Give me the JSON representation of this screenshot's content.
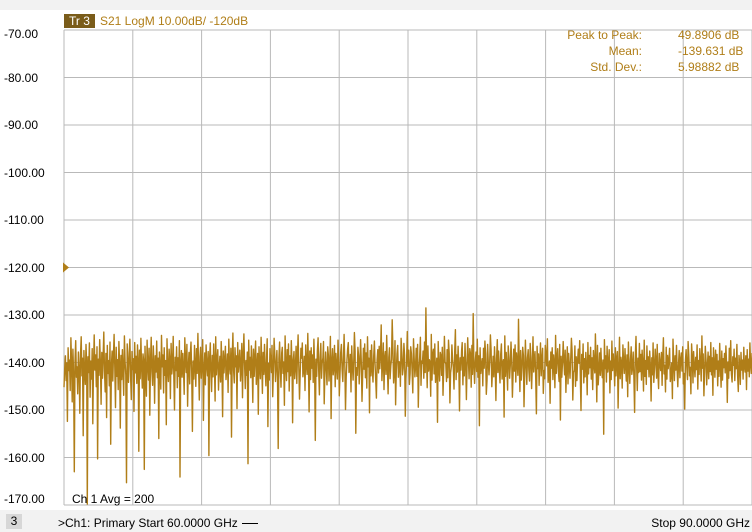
{
  "trace": {
    "tag": "Tr 3",
    "description": "S21 LogM 10.00dB/  -120dB",
    "color": "#b07e18"
  },
  "y_axis": {
    "ticks": [
      "-70.00",
      "-80.00",
      "-90.00",
      "-100.00",
      "-110.00",
      "-120.00",
      "-130.00",
      "-140.00",
      "-150.00",
      "-160.00",
      "-170.00"
    ],
    "reference_level": -120
  },
  "stats": {
    "peak_to_peak_label": "Peak to Peak:",
    "peak_to_peak_value": "49.8906 dB",
    "mean_label": "Mean:",
    "mean_value": "-139.631 dB",
    "std_dev_label": "Std. Dev.:",
    "std_dev_value": "5.98882 dB"
  },
  "averaging": {
    "label": "Ch 1 Avg =  200"
  },
  "footer": {
    "channel_number": "3",
    "channel_info": ">Ch1: Primary  Start  60.0000 GHz",
    "stop_label": "Stop  90.0000 GHz"
  },
  "chart_data": {
    "type": "line",
    "title": "",
    "xlabel": "",
    "ylabel": "",
    "x_start_ghz": 60,
    "x_stop_ghz": 90,
    "ylim": [
      -170,
      -70
    ],
    "grid": true,
    "series": [
      {
        "color": "#b07e18",
        "summary": {
          "peak_to_peak_db": 49.8906,
          "mean_db": -139.631,
          "std_dev_db": 5.98882
        },
        "values": [
          -145.2,
          -141.3,
          -138.6,
          -143.8,
          -140.1,
          -152.4,
          -136.9,
          -141.7,
          -139.5,
          -145.9,
          -134.8,
          -140.6,
          -148.3,
          -137.2,
          -142.4,
          -163.0,
          -139.8,
          -135.4,
          -143.1,
          -140.9,
          -146.6,
          -137.8,
          -141.2,
          -150.7,
          -138.3,
          -134.6,
          -142.8,
          -139.1,
          -155.4,
          -137.5,
          -141.9,
          -144.6,
          -136.2,
          -140.4,
          -169.8,
          -138.8,
          -142.1,
          -135.9,
          -147.3,
          -139.7,
          -143.5,
          -137.1,
          -152.9,
          -140.8,
          -134.2,
          -141.6,
          -138.4,
          -145.1,
          -136.7,
          -160.3,
          -139.3,
          -142.7,
          -135.2,
          -140.2,
          -148.8,
          -137.9,
          -143.3,
          -139.0,
          -133.6,
          -141.8,
          -146.2,
          -138.1,
          -151.6,
          -136.4,
          -142.3,
          -139.6,
          -144.9,
          -135.7,
          -157.2,
          -140.7,
          -137.6,
          -143.9,
          -138.9,
          -134.1,
          -141.1,
          -149.5,
          -136.8,
          -142.9,
          -139.4,
          -145.7,
          -135.6,
          -140.3,
          -153.8,
          -138.5,
          -143.6,
          -137.3,
          -141.4,
          -146.9,
          -134.4,
          -139.9,
          -142.6,
          -165.3,
          -136.1,
          -140.5,
          -144.2,
          -138.0,
          -135.1,
          -143.0,
          -147.8,
          -137.7,
          -141.5,
          -139.2,
          -150.3,
          -135.8,
          -142.2,
          -138.7,
          -144.4,
          -136.3,
          -140.0,
          -158.7,
          -137.4,
          -143.4,
          -134.9,
          -141.0,
          -145.4,
          -138.2,
          -139.5,
          -162.5,
          -136.6,
          -142.5,
          -147.1,
          -135.3,
          -140.7,
          -143.7,
          -137.0,
          -151.1,
          -139.8,
          -134.7,
          -141.9,
          -144.8,
          -136.5,
          -140.1,
          -148.6,
          -138.6,
          -142.0,
          -135.5,
          -143.2,
          -139.1,
          -156.0,
          -137.8,
          -141.3,
          -145.6,
          -134.3,
          -140.9,
          -138.4,
          -146.4,
          -136.9,
          -142.7,
          -139.6,
          -153.1,
          -135.0,
          -141.2,
          -144.0,
          -137.2,
          -139.3,
          -147.6,
          -136.0,
          -142.4,
          -140.5,
          -134.5,
          -143.8,
          -150.0,
          -138.9,
          -141.7,
          -136.7,
          -145.3,
          -139.0,
          -142.9,
          -135.4,
          -164.1,
          -140.2,
          -137.5,
          -143.1,
          -138.1,
          -141.6,
          -146.7,
          -134.8,
          -139.4,
          -142.1,
          -136.2,
          -149.2,
          -140.8,
          -137.9,
          -144.5,
          -138.3,
          -135.7,
          -141.8,
          -154.5,
          -139.7,
          -143.5,
          -136.4,
          -140.4,
          -145.0,
          -137.1,
          -142.3,
          -133.9,
          -141.0,
          -147.9,
          -138.8,
          -136.8,
          -143.3,
          -139.9,
          -135.2,
          -152.2,
          -141.4,
          -138.0,
          -144.7,
          -136.3,
          -140.6,
          -142.8,
          -137.7,
          -159.6,
          -139.2,
          -135.9,
          -141.5,
          -146.1,
          -138.5,
          -143.0,
          -136.1,
          -140.3,
          -148.1,
          -134.6,
          -142.6,
          -139.5,
          -137.3,
          -145.8,
          -141.1,
          -138.7,
          -144.1,
          -135.6,
          -140.0,
          -151.4,
          -137.6,
          -142.2,
          -139.3,
          -136.6,
          -143.6,
          -141.3,
          -138.2,
          -146.3,
          -135.1,
          -140.7,
          -142.4,
          -137.0,
          -155.7,
          -139.1,
          -133.8,
          -141.7,
          -144.3,
          -136.9,
          -140.9,
          -138.6,
          -149.7,
          -135.8,
          -142.0,
          -139.8,
          -137.4,
          -143.9,
          -141.2,
          -136.0,
          -147.4,
          -138.4,
          -134.0,
          -140.5,
          -145.5,
          -139.6,
          -142.7,
          -137.8,
          -161.3,
          -135.3,
          -141.6,
          -138.9,
          -143.2,
          -136.5,
          -140.1,
          -148.4,
          -137.2,
          -142.9,
          -139.0,
          -135.5,
          -144.6,
          -141.0,
          -138.1,
          -150.9,
          -136.7,
          -140.8,
          -143.4,
          -134.7,
          -139.4,
          -146.5,
          -137.9,
          -142.5,
          -136.2,
          -141.4,
          -144.9,
          -138.8,
          -135.0,
          -153.5,
          -140.2,
          -143.7,
          -137.1,
          -139.7,
          -142.1,
          -136.4,
          -147.2,
          -141.8,
          -134.9,
          -138.3,
          -144.0,
          -140.6,
          -137.5,
          -143.1,
          -158.1,
          -139.2,
          -135.7,
          -141.5,
          -145.2,
          -138.0,
          -136.8,
          -142.3,
          -139.9,
          -149.0,
          -134.4,
          -140.3,
          -143.8,
          -137.3,
          -141.9,
          -136.1,
          -146.0,
          -138.6,
          -142.8,
          -135.4,
          -140.0,
          -152.7,
          -139.5,
          -137.7,
          -143.4,
          -141.1,
          -136.6,
          -144.4,
          -138.2,
          -134.2,
          -140.9,
          -147.7,
          -142.2,
          -137.0,
          -139.1,
          -135.9,
          -143.0,
          -141.6,
          -138.7,
          -145.9,
          -136.3,
          -140.4,
          -142.5,
          -133.9,
          -139.8,
          -150.4,
          -137.6,
          -143.6,
          -136.9,
          -141.2,
          -138.4,
          -144.2,
          -135.1,
          -140.7,
          -156.4,
          -139.3,
          -142.9,
          -137.4,
          -134.8,
          -141.7,
          -146.8,
          -138.9,
          -136.0,
          -143.3,
          -140.1,
          -139.0,
          -135.6,
          -148.7,
          -142.0,
          -137.8,
          -141.3,
          -144.7,
          -136.7,
          -138.5,
          -143.9,
          -140.5,
          -134.5,
          -151.8,
          -139.6,
          -137.1,
          -142.6,
          -141.0,
          -136.4,
          -145.1,
          -138.1,
          -140.8,
          -143.5,
          -135.3,
          -139.2,
          -147.0,
          -142.4,
          -137.9,
          -136.2,
          -141.5,
          -144.0,
          -138.8,
          -134.1,
          -140.2,
          -149.9,
          -143.1,
          -139.7,
          -137.2,
          -135.8,
          -142.1,
          -141.8,
          -138.3,
          -146.2,
          -136.5,
          -140.6,
          -143.7,
          -139.4,
          -133.7,
          -137.6,
          -154.9,
          -141.1,
          -142.7,
          -136.8,
          -138.6,
          -144.5,
          -140.3,
          -135.2,
          -139.9,
          -148.2,
          -142.3,
          -137.0,
          -141.4,
          -136.1,
          -143.2,
          -138.0,
          -145.4,
          -134.6,
          -140.9,
          -139.1,
          -150.6,
          -137.5,
          -142.8,
          -136.3,
          -141.6,
          -144.1,
          -138.7,
          -135.5,
          -140.0,
          -143.6,
          -147.5,
          -139.5,
          -137.3,
          -142.2,
          -136.6,
          -141.3,
          -138.4,
          -132.1,
          -143.8,
          -140.4,
          -135.9,
          -145.7,
          -139.0,
          -137.7,
          -142.5,
          -134.3,
          -141.0,
          -146.6,
          -138.9,
          -136.9,
          -143.4,
          -140.7,
          -139.3,
          -131.0,
          -137.1,
          -144.3,
          -142.0,
          -135.4,
          -148.9,
          -141.7,
          -138.2,
          -136.4,
          -143.1,
          -139.8,
          -140.1,
          -145.0,
          -134.9,
          -137.8,
          -142.6,
          -141.2,
          -136.0,
          -138.5,
          -151.3,
          -143.5,
          -139.6,
          -133.5,
          -140.8,
          -137.4,
          -144.6,
          -142.3,
          -136.7,
          -138.1,
          -141.9,
          -146.4,
          -135.0,
          -139.2,
          -143.0,
          -140.5,
          -137.0,
          -142.9,
          -136.2,
          -149.4,
          -141.4,
          -138.8,
          -134.7,
          -144.8,
          -139.7,
          -140.2,
          -137.6,
          -143.3,
          -135.7,
          -142.1,
          -128.5,
          -138.6,
          -145.3,
          -136.5,
          -141.8,
          -139.4,
          -140.0,
          -147.1,
          -134.1,
          -143.7,
          -138.3,
          -137.2,
          -142.4,
          -136.1,
          -144.2,
          -141.1,
          -139.1,
          -152.6,
          -135.6,
          -140.6,
          -143.9,
          -137.9,
          -138.7,
          -142.7,
          -136.8,
          -146.9,
          -141.5,
          -134.5,
          -139.9,
          -140.3,
          -144.0,
          -137.3,
          -143.2,
          -135.3,
          -138.0,
          -148.5,
          -142.2,
          -140.9,
          -136.3,
          -139.5,
          -141.0,
          -145.6,
          -137.7,
          -133.1,
          -143.6,
          -138.4,
          -142.0,
          -136.6,
          -140.4,
          -150.2,
          -139.0,
          -141.6,
          -137.5,
          -135.8,
          -144.7,
          -138.9,
          -142.8,
          -136.0,
          -140.1,
          -147.8,
          -141.3,
          -134.8,
          -139.3,
          -143.4,
          -137.1,
          -138.2,
          -145.2,
          -136.4,
          -142.5,
          -129.7,
          -140.7,
          -144.4,
          -139.7,
          -137.8,
          -141.9,
          -135.1,
          -143.1,
          -138.6,
          -153.3,
          -136.9,
          -142.3,
          -140.5,
          -139.2,
          -144.9,
          -137.0,
          -141.2,
          -135.5,
          -138.1,
          -146.7,
          -143.8,
          -136.2,
          -140.0,
          -142.6,
          -139.8,
          -134.2,
          -137.4,
          -145.1,
          -141.7,
          -138.7,
          -143.0,
          -136.7,
          -140.8,
          -148.0,
          -139.1,
          -135.2,
          -142.1,
          -137.6,
          -141.4,
          -144.3,
          -138.3,
          -136.1,
          -143.5,
          -140.2,
          -139.4,
          -151.5,
          -134.4,
          -142.9,
          -137.9,
          -141.1,
          -145.8,
          -136.5,
          -138.8,
          -143.3,
          -140.6,
          -135.7,
          -139.6,
          -147.3,
          -142.4,
          -137.2,
          -141.8,
          -136.3,
          -144.1,
          -138.0,
          -140.3,
          -142.7,
          -130.9,
          -139.9,
          -146.1,
          -137.5,
          -143.7,
          -141.0,
          -136.8,
          -138.5,
          -149.3,
          -142.2,
          -135.3,
          -140.4,
          -144.6,
          -139.0,
          -137.3,
          -141.5,
          -143.9,
          -136.0,
          -138.9,
          -145.5,
          -140.9,
          -134.6,
          -142.0,
          -139.5,
          -137.7,
          -143.2,
          -150.8,
          -136.6,
          -141.3,
          -138.2,
          -144.8,
          -140.1,
          -135.9,
          -142.8,
          -139.3,
          -137.0,
          -146.5,
          -141.7,
          -143.4,
          -136.4,
          -138.6,
          -140.7,
          -135.0,
          -144.2,
          -142.5,
          -139.7,
          -148.6,
          -137.8,
          -141.2,
          -136.9,
          -143.6,
          -138.4,
          -140.5,
          -145.3,
          -134.3,
          -142.3,
          -139.1,
          -137.1,
          -141.9,
          -144.0,
          -136.2,
          -152.1,
          -138.7,
          -143.1,
          -140.0,
          -135.6,
          -139.8,
          -142.6,
          -137.4,
          -146.3,
          -141.0,
          -136.7,
          -144.5,
          -138.1,
          -140.8,
          -143.3,
          -139.4,
          -134.9,
          -137.6,
          -147.9,
          -142.1,
          -141.6,
          -136.5,
          -145.0,
          -138.8,
          -143.8,
          -139.6,
          -137.2,
          -140.2,
          -135.4,
          -142.9,
          -150.1,
          -138.3,
          -141.4,
          -136.1,
          -144.3,
          -139.2,
          -143.0,
          -137.9,
          -140.6,
          -146.8,
          -135.8,
          -142.4,
          -138.5,
          -141.1,
          -136.8,
          -143.5,
          -139.0,
          -145.7,
          -137.5,
          -140.4,
          -142.2,
          -134.0,
          -139.9,
          -148.3,
          -136.4,
          -144.7,
          -141.8,
          -138.0,
          -142.7,
          -137.0,
          -140.9,
          -143.2,
          -139.5,
          -155.1,
          -135.2,
          -141.3,
          -138.6,
          -144.1,
          -136.6,
          -142.0,
          -140.3,
          -137.3,
          -146.4,
          -139.7,
          -143.6,
          -135.5,
          -141.7,
          -138.2,
          -140.1,
          -144.9,
          -136.9,
          -142.8,
          -139.3,
          -137.7,
          -149.6,
          -141.5,
          -134.7,
          -143.4,
          -138.9,
          -140.0,
          -145.4,
          -136.3,
          -139.8,
          -142.3,
          -137.1,
          -141.0,
          -143.9,
          -138.4,
          -147.2,
          -135.7,
          -140.7,
          -144.4,
          -139.4,
          -136.7,
          -142.5,
          -141.2,
          -137.8,
          -143.1,
          -150.5,
          -138.7,
          -134.5,
          -140.5,
          -145.9,
          -139.1,
          -142.1,
          -136.0,
          -141.9,
          -138.3,
          -143.7,
          -137.4,
          -140.2,
          -146.0,
          -135.3,
          -142.9,
          -139.6,
          -144.6,
          -136.5,
          -141.4,
          -138.8,
          -143.0,
          -137.6,
          -140.8,
          -148.1,
          -139.0,
          -142.6,
          -135.9,
          -144.2,
          -141.1,
          -137.2,
          -139.9,
          -143.3,
          -136.2,
          -142.2,
          -145.5,
          -138.1,
          -140.3,
          -141.7,
          -137.9,
          -144.8,
          -139.2,
          -134.8,
          -142.4,
          -140.6,
          -146.2,
          -136.8,
          -143.5,
          -138.5,
          -141.3,
          -139.5,
          -137.0,
          -144.0,
          -142.7,
          -140.1,
          -147.6,
          -135.1,
          -139.7,
          -143.8,
          -138.6,
          -141.6,
          -136.4,
          -142.0,
          -145.1,
          -140.4,
          -137.5,
          -143.2,
          -139.3,
          -138.0,
          -141.8,
          -136.7,
          -144.5,
          -142.3,
          -149.8,
          -139.8,
          -137.3,
          -140.9,
          -143.6,
          -135.6,
          -138.4,
          -142.8,
          -141.0,
          -146.6,
          -136.1,
          -139.1,
          -144.3,
          -137.7,
          -140.7,
          -143.0,
          -138.9,
          -141.5,
          -136.3,
          -145.6,
          -139.6,
          -142.5,
          -137.1,
          -140.0,
          -143.9,
          -134.4,
          -141.2,
          -138.2,
          -147.0,
          -142.1,
          -136.6,
          -139.4,
          -144.7,
          -140.5,
          -137.8,
          -143.4,
          -138.7,
          -141.9,
          -135.8,
          -142.6,
          -139.0,
          -146.9,
          -136.9,
          -140.2,
          -143.1,
          -137.4,
          -141.4,
          -138.3,
          -144.9,
          -139.7,
          -142.9,
          -136.0,
          -140.8,
          -145.2,
          -137.6,
          -143.7,
          -139.2,
          -141.1,
          -138.1,
          -142.2,
          -136.5,
          -140.3,
          -148.4,
          -139.9,
          -143.3,
          -137.0,
          -141.7,
          -135.4,
          -142.4,
          -144.1,
          -138.8,
          -140.6,
          -137.2,
          -143.8,
          -139.1,
          -141.3,
          -136.2,
          -142.7,
          -146.1,
          -138.5,
          -140.1,
          -144.6,
          -137.9,
          -141.6,
          -139.5,
          -143.5,
          -136.8,
          -140.9,
          -142.0,
          -138.6,
          -145.7,
          -137.3,
          -141.8,
          -139.3,
          -143.0,
          -135.9,
          -140.4,
          -142.3,
          -138.0
        ]
      }
    ]
  }
}
